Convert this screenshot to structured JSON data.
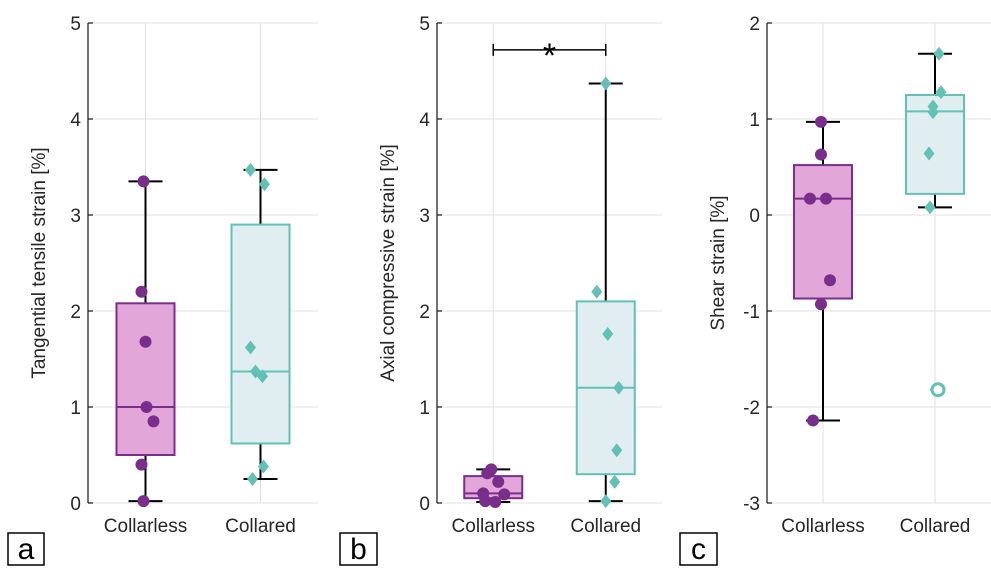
{
  "colors": {
    "collarless_fill": "#e3a6d9",
    "collarless_edge": "#7a2e8c",
    "collarless_marker": "#7a2e8c",
    "collared_fill": "#e1eef1",
    "collared_edge": "#62c1b4",
    "collared_marker": "#62c1b4",
    "whisker": "#000000",
    "grid": "#e0e0e0"
  },
  "chart_data": [
    {
      "type": "box",
      "panel_label": "a",
      "ylabel": "Tangential tensile strain [%]",
      "ylim": [
        0,
        5
      ],
      "yticks": [
        0,
        1,
        2,
        3,
        4,
        5
      ],
      "categories": [
        "Collarless",
        "Collared"
      ],
      "grid": true,
      "groups": [
        {
          "name": "Collarless",
          "marker": "circle",
          "points": [
            3.35,
            2.2,
            1.68,
            1.0,
            0.85,
            0.4,
            0.02
          ],
          "box": {
            "min": 0.02,
            "q1": 0.5,
            "median": 1.0,
            "q3": 2.08,
            "max": 3.35
          },
          "outliers": []
        },
        {
          "name": "Collared",
          "marker": "diamond",
          "points": [
            3.47,
            3.32,
            1.62,
            1.37,
            1.32,
            0.38,
            0.25
          ],
          "box": {
            "min": 0.25,
            "q1": 0.62,
            "median": 1.37,
            "q3": 2.9,
            "max": 3.47
          },
          "outliers": []
        }
      ]
    },
    {
      "type": "box",
      "panel_label": "b",
      "ylabel": "Axial compressive strain [%]",
      "ylim": [
        0,
        5
      ],
      "yticks": [
        0,
        1,
        2,
        3,
        4,
        5
      ],
      "categories": [
        "Collarless",
        "Collared"
      ],
      "grid": true,
      "significance": {
        "text": "*",
        "between": [
          "Collarless",
          "Collared"
        ],
        "level": 4.72
      },
      "groups": [
        {
          "name": "Collarless",
          "marker": "circle",
          "points": [
            0.35,
            0.31,
            0.22,
            0.1,
            0.09,
            0.02,
            0.01
          ],
          "box": {
            "min": 0.01,
            "q1": 0.05,
            "median": 0.1,
            "q3": 0.28,
            "max": 0.35
          },
          "outliers": []
        },
        {
          "name": "Collared",
          "marker": "diamond",
          "points": [
            4.37,
            2.2,
            1.76,
            1.2,
            0.55,
            0.22,
            0.02
          ],
          "box": {
            "min": 0.02,
            "q1": 0.3,
            "median": 1.2,
            "q3": 2.1,
            "max": 4.37
          },
          "outliers": []
        }
      ]
    },
    {
      "type": "box",
      "panel_label": "c",
      "ylabel": "Shear strain [%]",
      "ylim": [
        -3,
        2
      ],
      "yticks": [
        -3,
        -2,
        -1,
        0,
        1,
        2
      ],
      "categories": [
        "Collarless",
        "Collared"
      ],
      "grid": true,
      "groups": [
        {
          "name": "Collarless",
          "marker": "circle",
          "points": [
            0.97,
            0.63,
            0.17,
            0.17,
            -0.68,
            -0.93,
            -2.14
          ],
          "box": {
            "min": -2.14,
            "q1": -0.87,
            "median": 0.17,
            "q3": 0.52,
            "max": 0.97
          },
          "outliers": []
        },
        {
          "name": "Collared",
          "marker": "diamond",
          "points": [
            1.68,
            1.28,
            1.13,
            1.07,
            0.64,
            0.08,
            -1.82
          ],
          "box": {
            "min": 0.08,
            "q1": 0.22,
            "median": 1.08,
            "q3": 1.25,
            "max": 1.68
          },
          "outliers": [
            -1.82
          ]
        }
      ]
    }
  ]
}
